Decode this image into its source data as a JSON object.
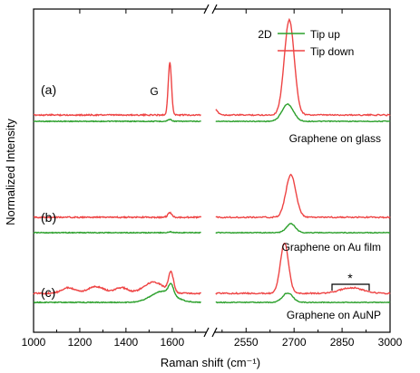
{
  "chart_data": {
    "type": "line",
    "xlabel": "Raman shift (cm⁻¹)",
    "ylabel": "Normalized Intensity",
    "x_break": {
      "left": [
        1000,
        1750
      ],
      "right": [
        2450,
        3000
      ]
    },
    "x_ticks_left": [
      1000,
      1200,
      1400,
      1600
    ],
    "x_ticks_right": [
      2550,
      2700,
      2850,
      3000
    ],
    "legend": {
      "position": "top-right",
      "entries": [
        {
          "name": "Tip up",
          "color": "#2ca02c"
        },
        {
          "name": "Tip down",
          "color": "#ee4444"
        }
      ]
    },
    "annotations": {
      "G": "G",
      "2D": "2D",
      "star": "*"
    },
    "series": [
      {
        "panel": "(a)",
        "sample": "Graphene on glass",
        "tip_up": {
          "baseline": 0.0,
          "peaks": [
            [
              1590,
              0.02,
              12
            ],
            [
              2680,
              0.18,
              25
            ]
          ]
        },
        "tip_down": {
          "baseline": 0.1,
          "peaks": [
            [
              1590,
              0.55,
              10
            ],
            [
              2685,
              1.0,
              22
            ],
            [
              2450,
              0.06,
              15
            ]
          ]
        }
      },
      {
        "panel": "(b)",
        "sample": "Graphene on Au film",
        "tip_up": {
          "baseline": 0.0,
          "peaks": [
            [
              1590,
              0.015,
              12
            ],
            [
              2690,
              0.15,
              20
            ]
          ]
        },
        "tip_down": {
          "baseline": 0.1,
          "peaks": [
            [
              1590,
              0.08,
              12
            ],
            [
              2690,
              0.72,
              22
            ]
          ]
        }
      },
      {
        "panel": "(c)",
        "sample": "Graphene on AuNP",
        "tip_up": {
          "baseline": 0.0,
          "peaks": [
            [
              1560,
              0.2,
              70
            ],
            [
              1595,
              0.18,
              15
            ],
            [
              2680,
              0.17,
              22
            ]
          ]
        },
        "tip_down": {
          "baseline": 0.1,
          "peaks": [
            [
              1150,
              0.1,
              40
            ],
            [
              1270,
              0.12,
              50
            ],
            [
              1380,
              0.1,
              40
            ],
            [
              1520,
              0.2,
              60
            ],
            [
              1595,
              0.35,
              15
            ],
            [
              2670,
              0.9,
              18
            ],
            [
              2880,
              0.1,
              50
            ]
          ]
        }
      }
    ]
  }
}
